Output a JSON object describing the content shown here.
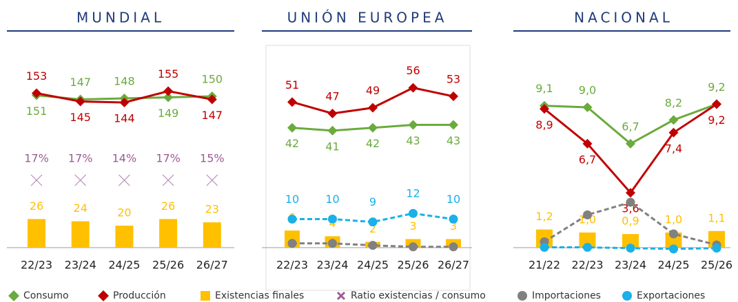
{
  "chart_data": [
    {
      "type": "line",
      "title": "MUNDIAL",
      "categories": [
        "22/23",
        "23/24",
        "24/25",
        "25/26",
        "26/27"
      ],
      "series": [
        {
          "name": "Consumo",
          "type": "line",
          "marker": "diamond",
          "color": "#6aab3c",
          "values": [
            151,
            147,
            148,
            149,
            150
          ]
        },
        {
          "name": "Producción",
          "type": "line",
          "marker": "diamond",
          "color": "#c00000",
          "values": [
            153,
            145,
            144,
            155,
            147
          ]
        },
        {
          "name": "Existencias finales",
          "type": "bar",
          "color": "#ffc000",
          "values": [
            26,
            24,
            20,
            26,
            23
          ]
        },
        {
          "name": "Ratio existencias / consumo",
          "type": "cross",
          "color": "#9b5b94",
          "values": [
            17,
            17,
            14,
            17,
            15
          ],
          "value_labels": [
            "17%",
            "17%",
            "14%",
            "17%",
            "15%"
          ]
        }
      ]
    },
    {
      "type": "line",
      "title": "UNIÓN EUROPEA",
      "categories": [
        "22/23",
        "23/24",
        "24/25",
        "25/26",
        "26/27"
      ],
      "series": [
        {
          "name": "Consumo",
          "type": "line",
          "marker": "diamond",
          "color": "#6aab3c",
          "values": [
            42,
            41,
            42,
            43,
            43
          ]
        },
        {
          "name": "Producción",
          "type": "line",
          "marker": "diamond",
          "color": "#c00000",
          "values": [
            51,
            47,
            49,
            56,
            53
          ]
        },
        {
          "name": "Existencias finales",
          "type": "bar",
          "color": "#ffc000",
          "values": [
            6,
            4,
            2,
            3,
            3
          ]
        },
        {
          "name": "Importaciones",
          "type": "line",
          "marker": "circle",
          "dashed": true,
          "labels": false,
          "color": "#808080",
          "values": [
            1.5,
            1.5,
            0.8,
            0.3,
            0.3
          ]
        },
        {
          "name": "Exportaciones",
          "type": "line",
          "marker": "circle",
          "dashed": true,
          "color": "#1ab0e8",
          "values": [
            10,
            10,
            9,
            12,
            10
          ]
        }
      ]
    },
    {
      "type": "line",
      "title": "NACIONAL",
      "categories": [
        "21/22",
        "22/23",
        "23/24",
        "24/25",
        "25/26"
      ],
      "series": [
        {
          "name": "Consumo",
          "type": "line",
          "marker": "diamond",
          "color": "#6aab3c",
          "values": [
            9.1,
            9.0,
            6.7,
            8.2,
            9.2
          ],
          "value_labels": [
            "9,1",
            "9,0",
            "6,7",
            "8,2",
            "9,2"
          ]
        },
        {
          "name": "Producción",
          "type": "line",
          "marker": "diamond",
          "color": "#c00000",
          "values": [
            8.9,
            6.7,
            3.6,
            7.4,
            9.2
          ],
          "value_labels": [
            "8,9",
            "6,7",
            "3,6",
            "7,4",
            "9,2"
          ]
        },
        {
          "name": "Existencias finales",
          "type": "bar",
          "color": "#ffc000",
          "values": [
            1.2,
            1.0,
            0.9,
            1.0,
            1.1
          ],
          "value_labels": [
            "1,2",
            "1,0",
            "0,9",
            "1,0",
            "1,1"
          ]
        },
        {
          "name": "Importaciones",
          "type": "line",
          "marker": "circle",
          "dashed": true,
          "labels": false,
          "color": "#808080",
          "values": [
            0.5,
            2.2,
            3.0,
            1.0,
            0.3
          ]
        },
        {
          "name": "Exportaciones",
          "type": "line",
          "marker": "circle",
          "dashed": true,
          "labels": false,
          "color": "#1ab0e8",
          "values": [
            0.15,
            0.15,
            0.1,
            0.05,
            0.1
          ]
        }
      ]
    }
  ]
}
